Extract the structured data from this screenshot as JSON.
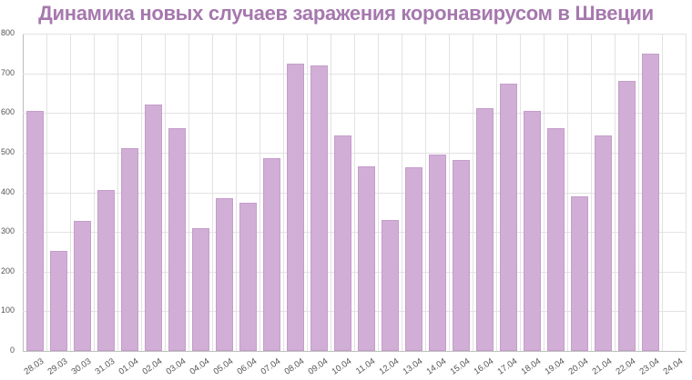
{
  "chart_data": {
    "type": "bar",
    "title": "Динамика новых случаев заражения коронавирусом в Швеции",
    "xlabel": "",
    "ylabel": "",
    "ylim": [
      0,
      800
    ],
    "yticks": [
      0,
      100,
      200,
      300,
      400,
      500,
      600,
      700,
      800
    ],
    "grid": true,
    "legend": null,
    "bar_color": "#d1aed6",
    "title_color": "#a678ae",
    "categories": [
      "28.03",
      "29.03",
      "30.03",
      "31.03",
      "01.04",
      "02.04",
      "03.04",
      "04.04",
      "05.04",
      "06.04",
      "07.04",
      "08.04",
      "09.04",
      "10.04",
      "11.04",
      "12.04",
      "13.04",
      "14.04",
      "15.04",
      "16.04",
      "17.04",
      "18.04",
      "19.04",
      "20.04",
      "21.04",
      "22.04",
      "23.04",
      "24.04"
    ],
    "values": [
      605,
      252,
      328,
      406,
      511,
      621,
      562,
      310,
      385,
      374,
      486,
      725,
      720,
      543,
      465,
      330,
      463,
      495,
      481,
      612,
      674,
      605,
      562,
      390,
      544,
      681,
      750,
      null
    ]
  }
}
